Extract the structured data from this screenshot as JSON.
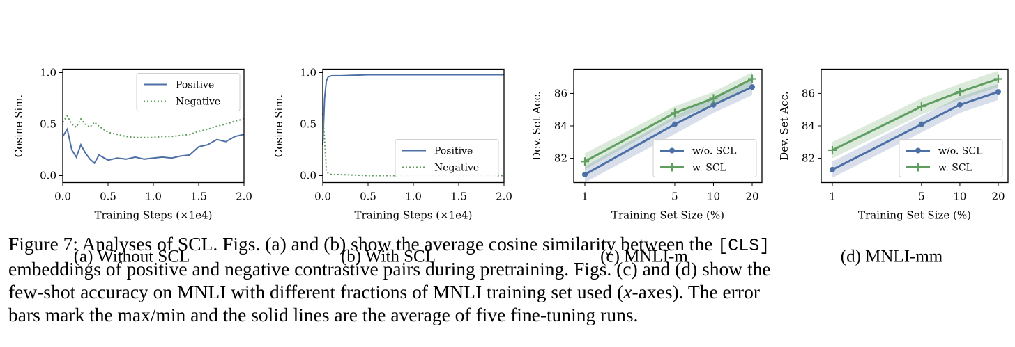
{
  "colors": {
    "blue": "#4c6fa5",
    "green": "#5f9e60"
  },
  "chart_data": [
    {
      "type": "line",
      "panel": "(a) Without SCL",
      "xlabel": "Training Steps (×1e4)",
      "ylabel": "Cosine Sim.",
      "xlim": [
        0,
        2.0
      ],
      "ylim": [
        -0.05,
        1.05
      ],
      "xticks": [
        "0.0",
        "0.5",
        "1.0",
        "1.5",
        "2.0"
      ],
      "yticks": [
        "0.0",
        "0.5",
        "1.0"
      ],
      "legend": "top-right",
      "series": [
        {
          "name": "Positive",
          "style": "solid",
          "x": [
            0.0,
            0.05,
            0.1,
            0.15,
            0.2,
            0.25,
            0.3,
            0.35,
            0.4,
            0.5,
            0.6,
            0.7,
            0.8,
            0.9,
            1.0,
            1.1,
            1.2,
            1.3,
            1.4,
            1.5,
            1.6,
            1.7,
            1.8,
            1.9,
            2.0
          ],
          "y": [
            0.38,
            0.45,
            0.25,
            0.18,
            0.3,
            0.22,
            0.16,
            0.12,
            0.2,
            0.15,
            0.17,
            0.16,
            0.18,
            0.16,
            0.17,
            0.18,
            0.17,
            0.19,
            0.2,
            0.28,
            0.3,
            0.35,
            0.33,
            0.38,
            0.4
          ]
        },
        {
          "name": "Negative",
          "style": "dotted",
          "x": [
            0.0,
            0.05,
            0.1,
            0.15,
            0.2,
            0.25,
            0.3,
            0.35,
            0.4,
            0.5,
            0.6,
            0.7,
            0.8,
            0.9,
            1.0,
            1.1,
            1.2,
            1.3,
            1.4,
            1.5,
            1.6,
            1.7,
            1.8,
            1.9,
            2.0
          ],
          "y": [
            0.52,
            0.58,
            0.5,
            0.47,
            0.55,
            0.5,
            0.47,
            0.52,
            0.48,
            0.42,
            0.4,
            0.38,
            0.37,
            0.37,
            0.37,
            0.38,
            0.38,
            0.39,
            0.4,
            0.43,
            0.45,
            0.48,
            0.5,
            0.53,
            0.55
          ]
        }
      ]
    },
    {
      "type": "line",
      "panel": "(b) With SCL",
      "xlabel": "Training Steps (×1e4)",
      "ylabel": "Cosine Sim.",
      "xlim": [
        0,
        2.0
      ],
      "ylim": [
        -0.05,
        1.05
      ],
      "xticks": [
        "0.0",
        "0.5",
        "1.0",
        "1.5",
        "2.0"
      ],
      "yticks": [
        "0.0",
        "0.5",
        "1.0"
      ],
      "legend": "lower-right",
      "series": [
        {
          "name": "Positive",
          "style": "solid",
          "x": [
            0.0,
            0.02,
            0.04,
            0.06,
            0.1,
            0.2,
            0.5,
            1.0,
            1.5,
            2.0
          ],
          "y": [
            0.3,
            0.75,
            0.92,
            0.96,
            0.97,
            0.97,
            0.98,
            0.98,
            0.98,
            0.98
          ]
        },
        {
          "name": "Negative",
          "style": "dotted",
          "x": [
            0.0,
            0.02,
            0.04,
            0.06,
            0.1,
            0.2,
            0.5,
            1.0,
            1.5,
            2.0
          ],
          "y": [
            0.6,
            0.35,
            0.05,
            0.02,
            0.01,
            0.01,
            0.0,
            0.0,
            0.0,
            0.0
          ]
        }
      ]
    },
    {
      "type": "line",
      "panel": "(c) MNLI-m",
      "xlabel": "Training Set Size (%)",
      "ylabel": "Dev. Set Acc.",
      "xscale": "log",
      "xlim": [
        1,
        20
      ],
      "ylim": [
        80.5,
        87.5
      ],
      "xticks": [
        "1",
        "5",
        "10",
        "20"
      ],
      "yticks": [
        "82",
        "84",
        "86"
      ],
      "legend": "lower-right",
      "series": [
        {
          "name": "w/o. SCL",
          "marker": "circle",
          "x": [
            1,
            5,
            10,
            20
          ],
          "y": [
            81.0,
            84.1,
            85.3,
            86.4
          ],
          "min": [
            80.5,
            83.5,
            84.8,
            85.9
          ],
          "max": [
            81.5,
            84.6,
            85.8,
            86.9
          ]
        },
        {
          "name": "w. SCL",
          "marker": "plus",
          "x": [
            1,
            5,
            10,
            20
          ],
          "y": [
            81.8,
            84.8,
            85.7,
            86.9
          ],
          "min": [
            81.3,
            84.4,
            85.3,
            86.5
          ],
          "max": [
            82.3,
            85.2,
            86.1,
            87.3
          ]
        }
      ]
    },
    {
      "type": "line",
      "panel": "(d) MNLI-mm",
      "xlabel": "Training Set Size (%)",
      "ylabel": "Dev. Set Acc.",
      "xscale": "log",
      "xlim": [
        1,
        20
      ],
      "ylim": [
        80.5,
        87.5
      ],
      "xticks": [
        "1",
        "5",
        "10",
        "20"
      ],
      "yticks": [
        "82",
        "84",
        "86"
      ],
      "legend": "lower-right",
      "series": [
        {
          "name": "w/o. SCL",
          "marker": "circle",
          "x": [
            1,
            5,
            10,
            20
          ],
          "y": [
            81.3,
            84.1,
            85.3,
            86.1
          ],
          "min": [
            80.8,
            83.6,
            84.8,
            85.6
          ],
          "max": [
            81.8,
            84.6,
            85.8,
            86.6
          ]
        },
        {
          "name": "w. SCL",
          "marker": "plus",
          "x": [
            1,
            5,
            10,
            20
          ],
          "y": [
            82.5,
            85.2,
            86.1,
            86.9
          ],
          "min": [
            82.0,
            84.7,
            85.6,
            86.4
          ],
          "max": [
            83.0,
            85.7,
            86.6,
            87.4
          ]
        }
      ]
    }
  ],
  "caption": {
    "part1": "Figure 7: Analyses of SCL. Figs. (a) and (b) show the average cosine similarity between the ",
    "code": "[CLS]",
    "part2": "embeddings of positive and negative contrastive pairs during pretraining. Figs. (c) and (d) show the",
    "part3": "few-shot accuracy on MNLI with different fractions of MNLI training set used (",
    "var": "x",
    "part4": "-axes). The error",
    "part5": "bars mark the max/min and the solid lines are the average of five fine-tuning runs."
  }
}
